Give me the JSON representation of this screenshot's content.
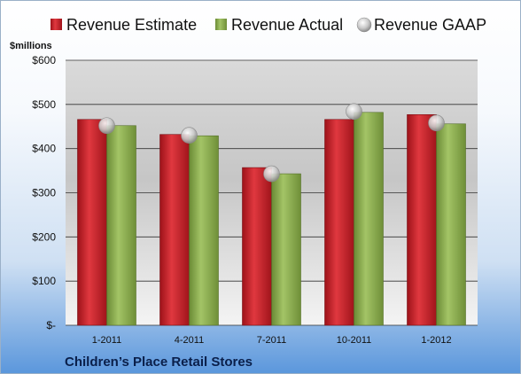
{
  "chart_data": {
    "type": "bar",
    "unit_label": "$millions",
    "caption": "Children’s Place Retail Stores",
    "categories": [
      "1-2011",
      "4-2011",
      "7-2011",
      "10-2011",
      "1-2012"
    ],
    "series": [
      {
        "name": "Revenue Estimate",
        "kind": "bar",
        "color": "#c8232c",
        "values": [
          466,
          432,
          357,
          466,
          477
        ]
      },
      {
        "name": "Revenue Actual",
        "kind": "bar",
        "color": "#8aab4a",
        "values": [
          452,
          429,
          343,
          482,
          456
        ]
      },
      {
        "name": "Revenue GAAP",
        "kind": "marker",
        "color": "#c9c9c9",
        "values": [
          452,
          430,
          343,
          484,
          458
        ]
      }
    ],
    "ylim": [
      0,
      600
    ],
    "y_ticks": [
      {
        "value": 0,
        "label": "$-"
      },
      {
        "value": 100,
        "label": "$100"
      },
      {
        "value": 200,
        "label": "$200"
      },
      {
        "value": 300,
        "label": "$300"
      },
      {
        "value": 400,
        "label": "$400"
      },
      {
        "value": 500,
        "label": "$500"
      },
      {
        "value": 600,
        "label": "$600"
      }
    ],
    "grid": true,
    "legend_position": "top"
  }
}
